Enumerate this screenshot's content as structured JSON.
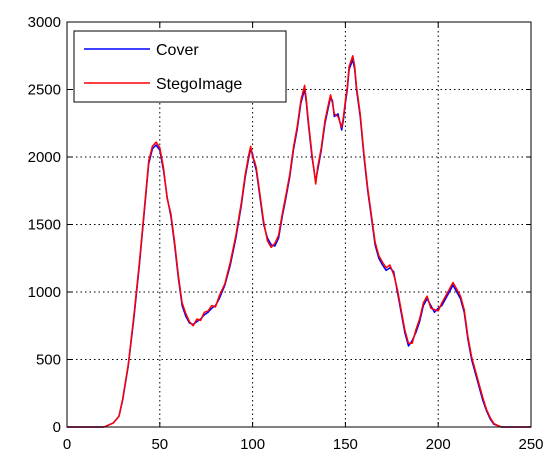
{
  "chart_data": {
    "type": "line",
    "title": "",
    "xlabel": "",
    "ylabel": "",
    "xlim": [
      0,
      250
    ],
    "ylim": [
      0,
      3000
    ],
    "x_ticks": [
      0,
      50,
      100,
      150,
      200,
      250
    ],
    "y_ticks": [
      0,
      500,
      1000,
      1500,
      2000,
      2500,
      3000
    ],
    "x_tick_labels": [
      "0",
      "50",
      "100",
      "150",
      "200",
      "250"
    ],
    "y_tick_labels": [
      "0",
      "500",
      "1000",
      "1500",
      "2000",
      "2500",
      "3000"
    ],
    "grid": true,
    "grid_style": "dotted",
    "legend_position": "top-left",
    "series": [
      {
        "name": "Cover",
        "color": "#0000ff",
        "x": [
          0,
          10,
          20,
          25,
          28,
          30,
          33,
          36,
          39,
          42,
          44,
          46,
          48,
          50,
          52,
          54,
          56,
          58,
          60,
          62,
          64,
          66,
          68,
          70,
          72,
          74,
          76,
          78,
          80,
          82,
          85,
          88,
          91,
          94,
          96,
          98,
          99,
          100,
          101,
          102,
          104,
          106,
          108,
          110,
          112,
          114,
          116,
          118,
          120,
          122,
          124,
          126,
          128,
          129,
          130,
          132,
          134,
          135,
          137,
          139,
          141,
          142,
          143,
          144,
          146,
          148,
          149,
          150,
          151,
          152,
          154,
          155,
          156,
          158,
          160,
          162,
          164,
          166,
          168,
          170,
          172,
          174,
          176,
          178,
          180,
          182,
          184,
          186,
          188,
          190,
          192,
          194,
          196,
          198,
          200,
          202,
          204,
          206,
          208,
          210,
          212,
          214,
          216,
          218,
          220,
          222,
          224,
          226,
          228,
          230,
          232,
          234,
          236,
          240,
          250
        ],
        "y": [
          0,
          0,
          0,
          30,
          80,
          200,
          450,
          800,
          1200,
          1650,
          1950,
          2060,
          2090,
          2050,
          1900,
          1700,
          1560,
          1350,
          1100,
          900,
          820,
          770,
          760,
          780,
          800,
          830,
          850,
          880,
          900,
          950,
          1050,
          1200,
          1400,
          1650,
          1850,
          2000,
          2060,
          2020,
          1950,
          1900,
          1700,
          1500,
          1400,
          1350,
          1340,
          1400,
          1560,
          1700,
          1850,
          2050,
          2200,
          2400,
          2500,
          2400,
          2250,
          2000,
          1820,
          1900,
          2050,
          2250,
          2380,
          2440,
          2420,
          2300,
          2320,
          2200,
          2280,
          2400,
          2500,
          2650,
          2720,
          2650,
          2500,
          2300,
          2000,
          1750,
          1550,
          1350,
          1250,
          1200,
          1160,
          1180,
          1150,
          1000,
          850,
          700,
          600,
          640,
          700,
          780,
          900,
          950,
          900,
          850,
          880,
          900,
          950,
          1000,
          1050,
          1000,
          950,
          850,
          650,
          500,
          400,
          300,
          200,
          120,
          60,
          20,
          10,
          0,
          0,
          0,
          0
        ]
      },
      {
        "name": "StegoImage",
        "color": "#ff0000",
        "x": [
          0,
          10,
          20,
          25,
          28,
          30,
          33,
          36,
          39,
          42,
          44,
          46,
          48,
          50,
          52,
          54,
          56,
          58,
          60,
          62,
          64,
          66,
          68,
          70,
          72,
          74,
          76,
          78,
          80,
          82,
          85,
          88,
          91,
          94,
          96,
          98,
          99,
          100,
          101,
          102,
          104,
          106,
          108,
          110,
          112,
          114,
          116,
          118,
          120,
          122,
          124,
          126,
          128,
          129,
          130,
          132,
          134,
          135,
          137,
          139,
          141,
          142,
          143,
          144,
          146,
          148,
          149,
          150,
          151,
          152,
          154,
          155,
          156,
          158,
          160,
          162,
          164,
          166,
          168,
          170,
          172,
          174,
          176,
          178,
          180,
          182,
          184,
          186,
          188,
          190,
          192,
          194,
          196,
          198,
          200,
          202,
          204,
          206,
          208,
          210,
          212,
          214,
          216,
          218,
          220,
          222,
          224,
          226,
          228,
          230,
          232,
          234,
          236,
          240,
          250
        ],
        "y": [
          0,
          0,
          0,
          30,
          80,
          210,
          460,
          820,
          1220,
          1670,
          1970,
          2080,
          2110,
          2070,
          1920,
          1690,
          1580,
          1370,
          1120,
          920,
          840,
          780,
          750,
          800,
          790,
          850,
          860,
          900,
          890,
          970,
          1060,
          1220,
          1420,
          1670,
          1870,
          2020,
          2080,
          2000,
          1970,
          1920,
          1720,
          1520,
          1380,
          1330,
          1360,
          1420,
          1580,
          1720,
          1870,
          2070,
          2220,
          2420,
          2530,
          2420,
          2270,
          2020,
          1800,
          1920,
          2070,
          2270,
          2400,
          2460,
          2400,
          2320,
          2300,
          2220,
          2300,
          2420,
          2520,
          2670,
          2750,
          2670,
          2520,
          2320,
          2020,
          1770,
          1570,
          1370,
          1270,
          1220,
          1180,
          1200,
          1130,
          1020,
          870,
          720,
          620,
          620,
          720,
          800,
          920,
          970,
          880,
          870,
          860,
          920,
          970,
          1020,
          1070,
          1020,
          970,
          870,
          670,
          520,
          420,
          320,
          220,
          130,
          70,
          25,
          12,
          0,
          0,
          0,
          0
        ]
      }
    ]
  }
}
